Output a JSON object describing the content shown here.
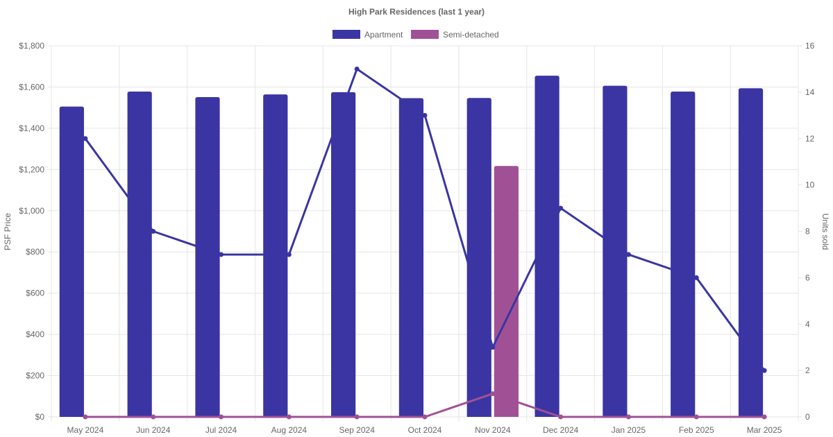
{
  "chart_data": {
    "type": "bar",
    "title": "High Park Residences (last 1 year)",
    "categories": [
      "May 2024",
      "Jun 2024",
      "Jul 2024",
      "Aug 2024",
      "Sep 2024",
      "Oct 2024",
      "Nov 2024",
      "Dec 2024",
      "Jan 2025",
      "Feb 2025",
      "Mar 2025"
    ],
    "series": [
      {
        "name": "Apartment",
        "kind": "bar",
        "axis": "left",
        "color": "#3a35a2",
        "values": [
          1505,
          1578,
          1551,
          1564,
          1575,
          1546,
          1547,
          1655,
          1606,
          1578,
          1594
        ]
      },
      {
        "name": "Semi-detached",
        "kind": "bar",
        "axis": "left",
        "color": "#a05196",
        "values": [
          null,
          null,
          null,
          null,
          null,
          null,
          1217,
          null,
          null,
          null,
          null
        ]
      },
      {
        "name": "",
        "kind": "line",
        "axis": "right",
        "color": "#3a35a2",
        "values": [
          12,
          8,
          7,
          7,
          15,
          13,
          3,
          9,
          7,
          6,
          2
        ]
      },
      {
        "name": "",
        "kind": "line",
        "axis": "right",
        "color": "#a05196",
        "values": [
          0,
          0,
          0,
          0,
          0,
          0,
          1,
          0,
          0,
          0,
          0
        ]
      }
    ],
    "ylabel": "PSF Price",
    "ylim": [
      0,
      1800
    ],
    "yticks": [
      "$0",
      "$200",
      "$400",
      "$600",
      "$800",
      "$1,000",
      "$1,200",
      "$1,400",
      "$1,600",
      "$1,800"
    ],
    "y2label": "Units sold",
    "y2lim": [
      0,
      16
    ],
    "y2ticks": [
      "0",
      "2",
      "4",
      "6",
      "8",
      "10",
      "12",
      "14",
      "16"
    ],
    "grid": true,
    "legend_position": "top"
  }
}
